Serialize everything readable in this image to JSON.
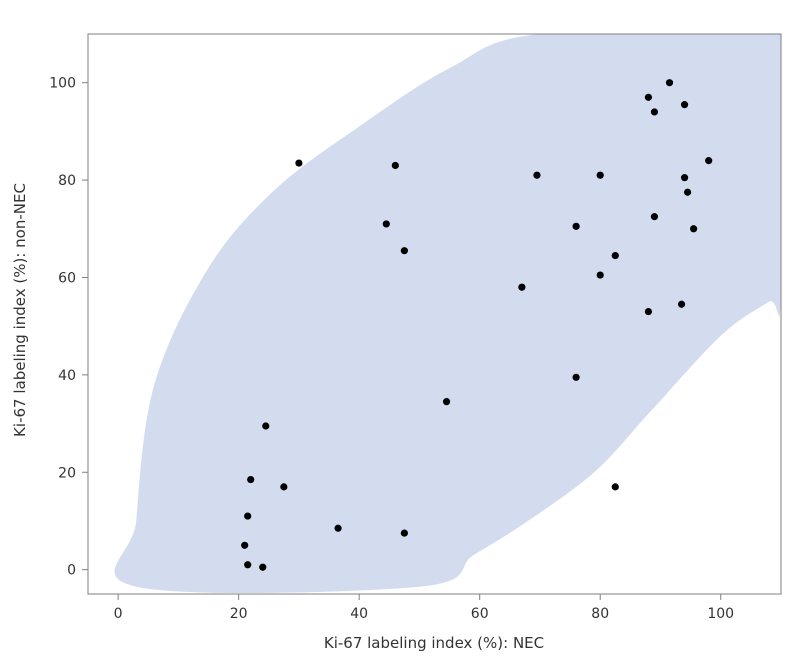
{
  "chart_data": {
    "type": "scatter",
    "title": "",
    "xlabel": "Ki-67 labeling index (%): NEC",
    "ylabel": "Ki-67 labeling index (%): non-NEC",
    "xlim": [
      -5,
      110
    ],
    "ylim": [
      -5,
      110
    ],
    "xticks": [
      0,
      20,
      40,
      60,
      80,
      100
    ],
    "yticks": [
      0,
      20,
      40,
      60,
      80,
      100
    ],
    "grid": false,
    "legend": "none",
    "colors": {
      "ellipse": "#d3dcef",
      "points": "#000000",
      "frame": "#7f7f7f"
    },
    "ellipse_outline": [
      [
        3,
        -3.5
      ],
      [
        50,
        -3.5
      ],
      [
        59,
        3
      ],
      [
        68,
        10
      ],
      [
        79,
        20
      ],
      [
        88,
        32
      ],
      [
        100,
        48
      ],
      [
        108,
        55
      ],
      [
        110,
        56
      ],
      [
        110,
        110
      ],
      [
        70,
        110
      ],
      [
        55,
        103
      ],
      [
        40,
        91
      ],
      [
        26,
        78
      ],
      [
        15,
        62
      ],
      [
        6,
        38
      ],
      [
        3,
        10
      ],
      [
        3,
        -3.5
      ]
    ],
    "points": [
      [
        30,
        83.5
      ],
      [
        46,
        83
      ],
      [
        44.5,
        71
      ],
      [
        47.5,
        65.5
      ],
      [
        54.5,
        34.5
      ],
      [
        24.5,
        29.5
      ],
      [
        22,
        18.5
      ],
      [
        27.5,
        17
      ],
      [
        21.5,
        11
      ],
      [
        36.5,
        8.5
      ],
      [
        47.5,
        7.5
      ],
      [
        21,
        5
      ],
      [
        21.5,
        1
      ],
      [
        24,
        0.5
      ],
      [
        67,
        58
      ],
      [
        69.5,
        81
      ],
      [
        76,
        70.5
      ],
      [
        80,
        81
      ],
      [
        80,
        60.5
      ],
      [
        82.5,
        64.5
      ],
      [
        76,
        39.5
      ],
      [
        82.5,
        17
      ],
      [
        88,
        97
      ],
      [
        89,
        94
      ],
      [
        91.5,
        100
      ],
      [
        94,
        95.5
      ],
      [
        98,
        84
      ],
      [
        94,
        80.5
      ],
      [
        94.5,
        77.5
      ],
      [
        89,
        72.5
      ],
      [
        95.5,
        70
      ],
      [
        88,
        53
      ],
      [
        93.5,
        54.5
      ]
    ]
  }
}
